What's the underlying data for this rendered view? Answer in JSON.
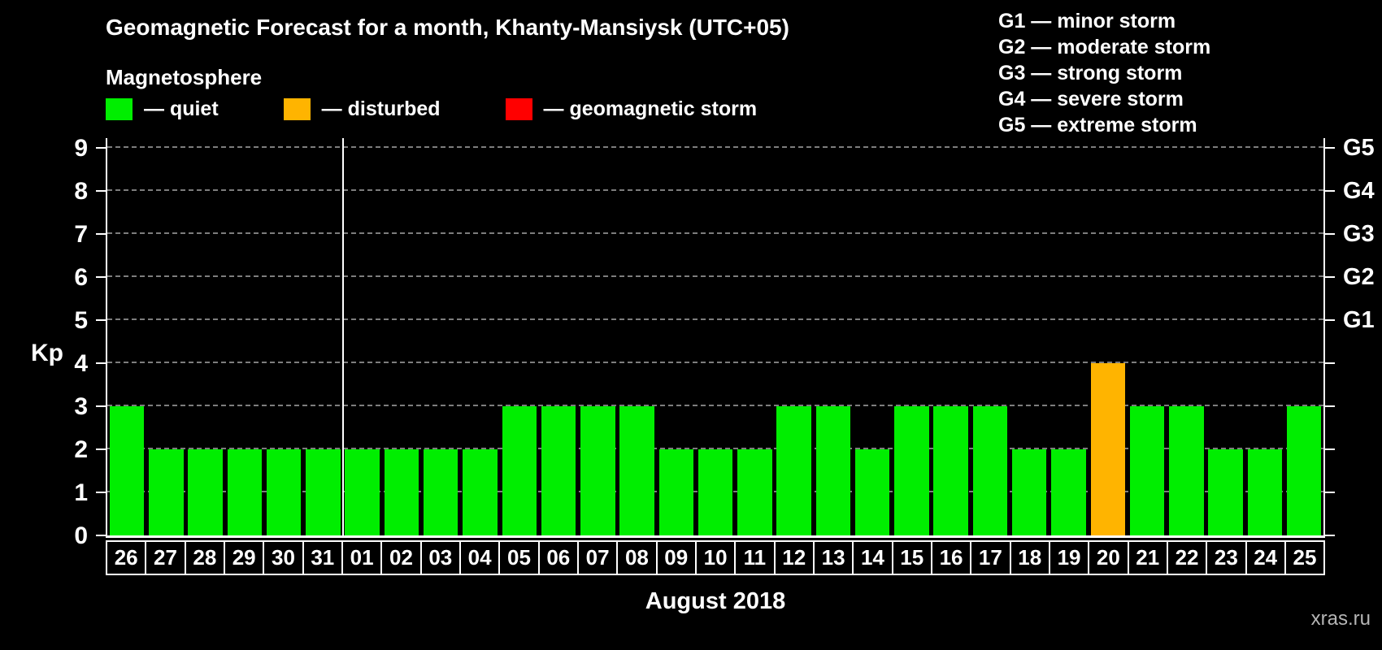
{
  "title": "Geomagnetic Forecast for a month, Khanty-Mansiysk (UTC+05)",
  "subtitle": "Magnetosphere",
  "legend": [
    {
      "label": "— quiet",
      "color": "#00ee00",
      "status": "quiet"
    },
    {
      "label": "— disturbed",
      "color": "#ffb400",
      "status": "disturbed"
    },
    {
      "label": "— geomagnetic storm",
      "color": "#ff0000",
      "status": "storm"
    }
  ],
  "g_legend": [
    "G1 — minor storm",
    "G2 — moderate storm",
    "G3 — strong storm",
    "G4 — severe storm",
    "G5 — extreme storm"
  ],
  "chart_data": {
    "type": "bar",
    "title": "Geomagnetic Forecast for a month, Khanty-Mansiysk (UTC+05)",
    "xlabel": "August 2018",
    "ylabel": "Kp",
    "ylim": [
      0,
      9
    ],
    "y_ticks": [
      0,
      1,
      2,
      3,
      4,
      5,
      6,
      7,
      8,
      9
    ],
    "grid": "dashed horizontal at each Kp from 1 to 9",
    "right_axis": [
      {
        "label": "G1",
        "kp": 5
      },
      {
        "label": "G2",
        "kp": 6
      },
      {
        "label": "G3",
        "kp": 7
      },
      {
        "label": "G4",
        "kp": 8
      },
      {
        "label": "G5",
        "kp": 9
      }
    ],
    "categories": [
      "26",
      "27",
      "28",
      "29",
      "30",
      "31",
      "01",
      "02",
      "03",
      "04",
      "05",
      "06",
      "07",
      "08",
      "09",
      "10",
      "11",
      "12",
      "13",
      "14",
      "15",
      "16",
      "17",
      "18",
      "19",
      "20",
      "21",
      "22",
      "23",
      "24",
      "25"
    ],
    "values": [
      3,
      2,
      2,
      2,
      2,
      2,
      2,
      2,
      2,
      2,
      3,
      3,
      3,
      3,
      2,
      2,
      2,
      3,
      3,
      2,
      3,
      3,
      3,
      2,
      2,
      4,
      3,
      3,
      2,
      2,
      3
    ],
    "statuses": [
      "quiet",
      "quiet",
      "quiet",
      "quiet",
      "quiet",
      "quiet",
      "quiet",
      "quiet",
      "quiet",
      "quiet",
      "quiet",
      "quiet",
      "quiet",
      "quiet",
      "quiet",
      "quiet",
      "quiet",
      "quiet",
      "quiet",
      "quiet",
      "quiet",
      "quiet",
      "quiet",
      "quiet",
      "quiet",
      "disturbed",
      "quiet",
      "quiet",
      "quiet",
      "quiet",
      "quiet"
    ],
    "status_colors": {
      "quiet": "#00ee00",
      "disturbed": "#ffb400",
      "storm": "#ff0000"
    },
    "month_separator_after_index": 5,
    "legend_position": "top-left and top-right"
  },
  "watermark": "xras.ru"
}
